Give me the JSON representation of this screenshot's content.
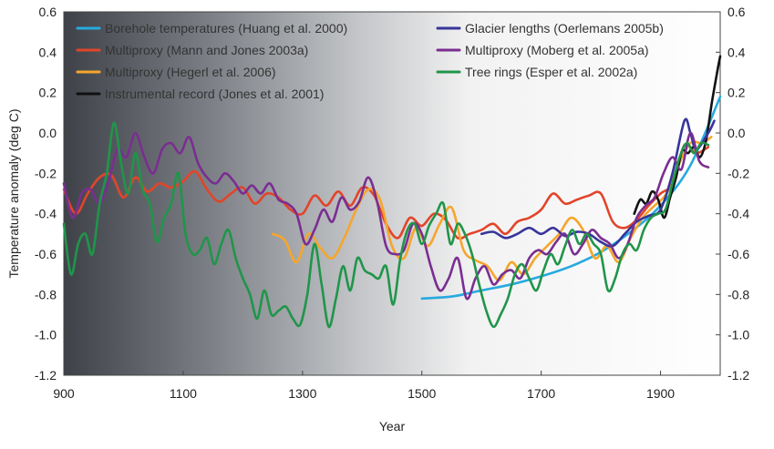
{
  "chart_data": {
    "type": "line",
    "xlabel": "Year",
    "ylabel": "Temperature anomaly (deg C)",
    "xlim": [
      900,
      2000
    ],
    "ylim": [
      -1.2,
      0.6
    ],
    "x_ticks": [
      900,
      1100,
      1300,
      1500,
      1700,
      1900
    ],
    "y_ticks": [
      "0.6",
      "0.4",
      "0.2",
      "0.0",
      "-0.2",
      "-0.4",
      "-0.6",
      "-0.8",
      "-1.0",
      "-1.2"
    ],
    "y_ticks_right": [
      "0.6",
      "0.4",
      "0.2",
      "0.0",
      "-0.2",
      "-0.4",
      "-0.6",
      "-0.8",
      "-1.0",
      "-1.2"
    ],
    "y_tick_values": [
      0.6,
      0.4,
      0.2,
      0.0,
      -0.2,
      -0.4,
      -0.6,
      -0.8,
      -1.0,
      -1.2
    ],
    "background": "gradient dark grey (left) to white (right)",
    "legend_position": "top",
    "series": [
      {
        "name": "Borehole temperatures (Huang et al. 2000)",
        "color": "#27a9df",
        "x": [
          1500,
          1550,
          1600,
          1650,
          1700,
          1750,
          1800,
          1850,
          1900,
          1950,
          2000
        ],
        "y": [
          -0.82,
          -0.81,
          -0.78,
          -0.75,
          -0.71,
          -0.66,
          -0.59,
          -0.49,
          -0.36,
          -0.16,
          0.18
        ]
      },
      {
        "name": "Multiproxy (Mann and Jones 2003a)",
        "color": "#e2452a",
        "x": [
          900,
          920,
          940,
          960,
          980,
          1000,
          1020,
          1040,
          1060,
          1080,
          1100,
          1120,
          1140,
          1160,
          1180,
          1200,
          1220,
          1240,
          1260,
          1280,
          1300,
          1320,
          1340,
          1360,
          1380,
          1400,
          1420,
          1440,
          1460,
          1480,
          1500,
          1520,
          1540,
          1560,
          1580,
          1600,
          1620,
          1640,
          1660,
          1680,
          1700,
          1720,
          1740,
          1760,
          1780,
          1800,
          1820,
          1840,
          1860,
          1880,
          1900,
          1920,
          1940,
          1960,
          1980
        ],
        "y": [
          -0.28,
          -0.4,
          -0.3,
          -0.22,
          -0.21,
          -0.32,
          -0.22,
          -0.29,
          -0.25,
          -0.27,
          -0.24,
          -0.19,
          -0.28,
          -0.34,
          -0.3,
          -0.27,
          -0.35,
          -0.3,
          -0.32,
          -0.38,
          -0.4,
          -0.31,
          -0.36,
          -0.29,
          -0.36,
          -0.27,
          -0.31,
          -0.45,
          -0.52,
          -0.42,
          -0.46,
          -0.4,
          -0.43,
          -0.52,
          -0.5,
          -0.48,
          -0.45,
          -0.5,
          -0.44,
          -0.42,
          -0.38,
          -0.3,
          -0.35,
          -0.33,
          -0.31,
          -0.3,
          -0.44,
          -0.47,
          -0.43,
          -0.36,
          -0.3,
          -0.25,
          -0.06,
          -0.1,
          -0.07
        ]
      },
      {
        "name": "Multiproxy (Hegerl et al. 2006)",
        "color": "#f6a62b",
        "x": [
          1250,
          1270,
          1290,
          1310,
          1330,
          1350,
          1370,
          1390,
          1410,
          1430,
          1450,
          1470,
          1490,
          1510,
          1530,
          1550,
          1570,
          1590,
          1610,
          1630,
          1650,
          1670,
          1690,
          1710,
          1730,
          1750,
          1770,
          1790,
          1810,
          1830,
          1850,
          1870,
          1890,
          1910,
          1930,
          1950,
          1970,
          1985
        ],
        "y": [
          -0.5,
          -0.53,
          -0.64,
          -0.5,
          -0.57,
          -0.62,
          -0.52,
          -0.38,
          -0.28,
          -0.33,
          -0.56,
          -0.62,
          -0.47,
          -0.56,
          -0.45,
          -0.37,
          -0.58,
          -0.63,
          -0.66,
          -0.73,
          -0.64,
          -0.7,
          -0.62,
          -0.56,
          -0.5,
          -0.42,
          -0.48,
          -0.62,
          -0.56,
          -0.64,
          -0.52,
          -0.42,
          -0.36,
          -0.3,
          -0.16,
          -0.05,
          -0.05,
          -0.02
        ]
      },
      {
        "name": "Instrumental record (Jones et al. 2001)",
        "color": "#111111",
        "x": [
          1856,
          1866,
          1876,
          1886,
          1896,
          1906,
          1916,
          1926,
          1936,
          1946,
          1956,
          1966,
          1976,
          1986,
          1996,
          2000
        ],
        "y": [
          -0.4,
          -0.33,
          -0.35,
          -0.29,
          -0.33,
          -0.42,
          -0.32,
          -0.22,
          -0.09,
          -0.1,
          -0.07,
          -0.12,
          -0.04,
          0.15,
          0.32,
          0.38
        ]
      },
      {
        "name": "Glacier lengths (Oerlemans 2005b)",
        "color": "#37359a",
        "x": [
          1600,
          1620,
          1640,
          1660,
          1680,
          1700,
          1720,
          1740,
          1760,
          1780,
          1800,
          1820,
          1840,
          1860,
          1880,
          1900,
          1920,
          1940,
          1950,
          1960,
          1980,
          1990
        ],
        "y": [
          -0.5,
          -0.49,
          -0.52,
          -0.5,
          -0.47,
          -0.5,
          -0.47,
          -0.51,
          -0.49,
          -0.5,
          -0.54,
          -0.56,
          -0.5,
          -0.44,
          -0.41,
          -0.38,
          -0.2,
          0.06,
          0.0,
          -0.08,
          0.0,
          0.06
        ]
      },
      {
        "name": "Multiproxy (Moberg et al. 2005a)",
        "color": "#7a2e91",
        "x": [
          900,
          915,
          930,
          945,
          960,
          975,
          990,
          1005,
          1020,
          1035,
          1050,
          1065,
          1080,
          1095,
          1110,
          1125,
          1140,
          1155,
          1170,
          1185,
          1200,
          1215,
          1230,
          1245,
          1260,
          1275,
          1290,
          1305,
          1320,
          1335,
          1350,
          1365,
          1380,
          1395,
          1410,
          1425,
          1440,
          1455,
          1470,
          1485,
          1500,
          1515,
          1530,
          1545,
          1560,
          1575,
          1590,
          1605,
          1620,
          1635,
          1650,
          1665,
          1680,
          1695,
          1710,
          1725,
          1740,
          1755,
          1770,
          1785,
          1800,
          1815,
          1830,
          1845,
          1860,
          1875,
          1890,
          1905,
          1920,
          1935,
          1950,
          1965,
          1980
        ],
        "y": [
          -0.25,
          -0.42,
          -0.3,
          -0.28,
          -0.35,
          -0.24,
          -0.08,
          -0.12,
          0.0,
          -0.12,
          -0.2,
          -0.08,
          -0.05,
          -0.1,
          -0.02,
          -0.15,
          -0.22,
          -0.25,
          -0.2,
          -0.24,
          -0.3,
          -0.26,
          -0.3,
          -0.25,
          -0.33,
          -0.35,
          -0.4,
          -0.55,
          -0.48,
          -0.38,
          -0.44,
          -0.32,
          -0.38,
          -0.34,
          -0.22,
          -0.34,
          -0.56,
          -0.6,
          -0.58,
          -0.45,
          -0.5,
          -0.66,
          -0.78,
          -0.72,
          -0.62,
          -0.82,
          -0.72,
          -0.66,
          -0.75,
          -0.7,
          -0.68,
          -0.72,
          -0.62,
          -0.58,
          -0.6,
          -0.54,
          -0.5,
          -0.6,
          -0.55,
          -0.48,
          -0.52,
          -0.55,
          -0.62,
          -0.55,
          -0.42,
          -0.36,
          -0.32,
          -0.2,
          -0.12,
          -0.18,
          0.0,
          -0.14,
          -0.17
        ]
      },
      {
        "name": "Tree rings (Esper et al. 2002a)",
        "color": "#20954a",
        "x": [
          900,
          912,
          924,
          936,
          948,
          960,
          972,
          984,
          996,
          1008,
          1020,
          1032,
          1044,
          1056,
          1068,
          1080,
          1092,
          1104,
          1116,
          1128,
          1140,
          1152,
          1164,
          1176,
          1188,
          1200,
          1212,
          1224,
          1236,
          1248,
          1260,
          1272,
          1284,
          1296,
          1308,
          1320,
          1332,
          1344,
          1356,
          1368,
          1380,
          1392,
          1404,
          1416,
          1428,
          1440,
          1452,
          1464,
          1476,
          1488,
          1500,
          1512,
          1524,
          1536,
          1548,
          1560,
          1572,
          1584,
          1596,
          1608,
          1620,
          1632,
          1644,
          1656,
          1668,
          1680,
          1692,
          1704,
          1716,
          1728,
          1740,
          1752,
          1764,
          1776,
          1788,
          1800,
          1812,
          1824,
          1836,
          1848,
          1860,
          1872,
          1884,
          1896,
          1908,
          1920,
          1932,
          1944,
          1956,
          1968,
          1980
        ],
        "y": [
          -0.45,
          -0.7,
          -0.55,
          -0.5,
          -0.6,
          -0.35,
          -0.2,
          0.05,
          -0.15,
          -0.3,
          -0.1,
          -0.28,
          -0.35,
          -0.54,
          -0.42,
          -0.35,
          -0.2,
          -0.5,
          -0.6,
          -0.58,
          -0.52,
          -0.65,
          -0.55,
          -0.48,
          -0.62,
          -0.72,
          -0.8,
          -0.92,
          -0.78,
          -0.9,
          -0.88,
          -0.86,
          -0.92,
          -0.95,
          -0.8,
          -0.55,
          -0.75,
          -0.96,
          -0.82,
          -0.66,
          -0.78,
          -0.62,
          -0.68,
          -0.7,
          -0.72,
          -0.66,
          -0.85,
          -0.62,
          -0.48,
          -0.45,
          -0.55,
          -0.46,
          -0.4,
          -0.35,
          -0.55,
          -0.45,
          -0.5,
          -0.6,
          -0.75,
          -0.88,
          -0.96,
          -0.9,
          -0.82,
          -0.7,
          -0.65,
          -0.72,
          -0.78,
          -0.68,
          -0.6,
          -0.65,
          -0.56,
          -0.48,
          -0.55,
          -0.5,
          -0.55,
          -0.6,
          -0.78,
          -0.72,
          -0.6,
          -0.55,
          -0.58,
          -0.48,
          -0.42,
          -0.4,
          -0.38,
          -0.25,
          -0.12,
          -0.05,
          -0.1,
          -0.05,
          -0.06
        ]
      }
    ]
  }
}
